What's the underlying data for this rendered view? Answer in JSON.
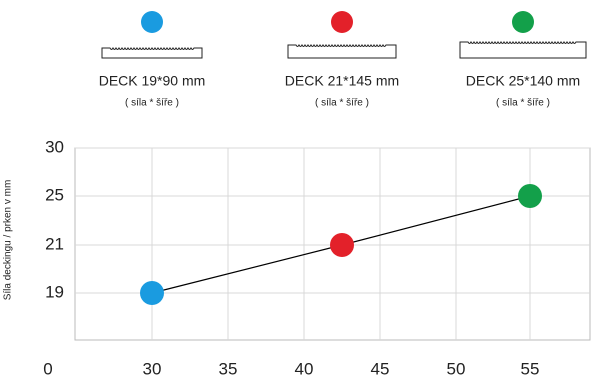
{
  "chart_data": {
    "type": "line",
    "y_label": "Síla deckingu / prken v mm",
    "x": [
      30,
      42.5,
      55
    ],
    "values": [
      19,
      21,
      25
    ],
    "line_color": "#000000",
    "points": [
      {
        "name": "DECK 19*90 mm",
        "note": "( síla * šíře )",
        "color": "#1a9be0"
      },
      {
        "name": "DECK 21*145 mm",
        "note": "( síla * šíře )",
        "color": "#e3212a"
      },
      {
        "name": "DECK 25*140 mm",
        "note": "( síla * šíře )",
        "color": "#13a04a"
      }
    ],
    "xlim": [
      0,
      55
    ],
    "xticks": [
      0,
      30,
      35,
      40,
      45,
      50,
      55
    ],
    "ylim": [
      19,
      30
    ],
    "yticks": [
      19,
      21,
      25,
      30
    ],
    "grid": true
  }
}
